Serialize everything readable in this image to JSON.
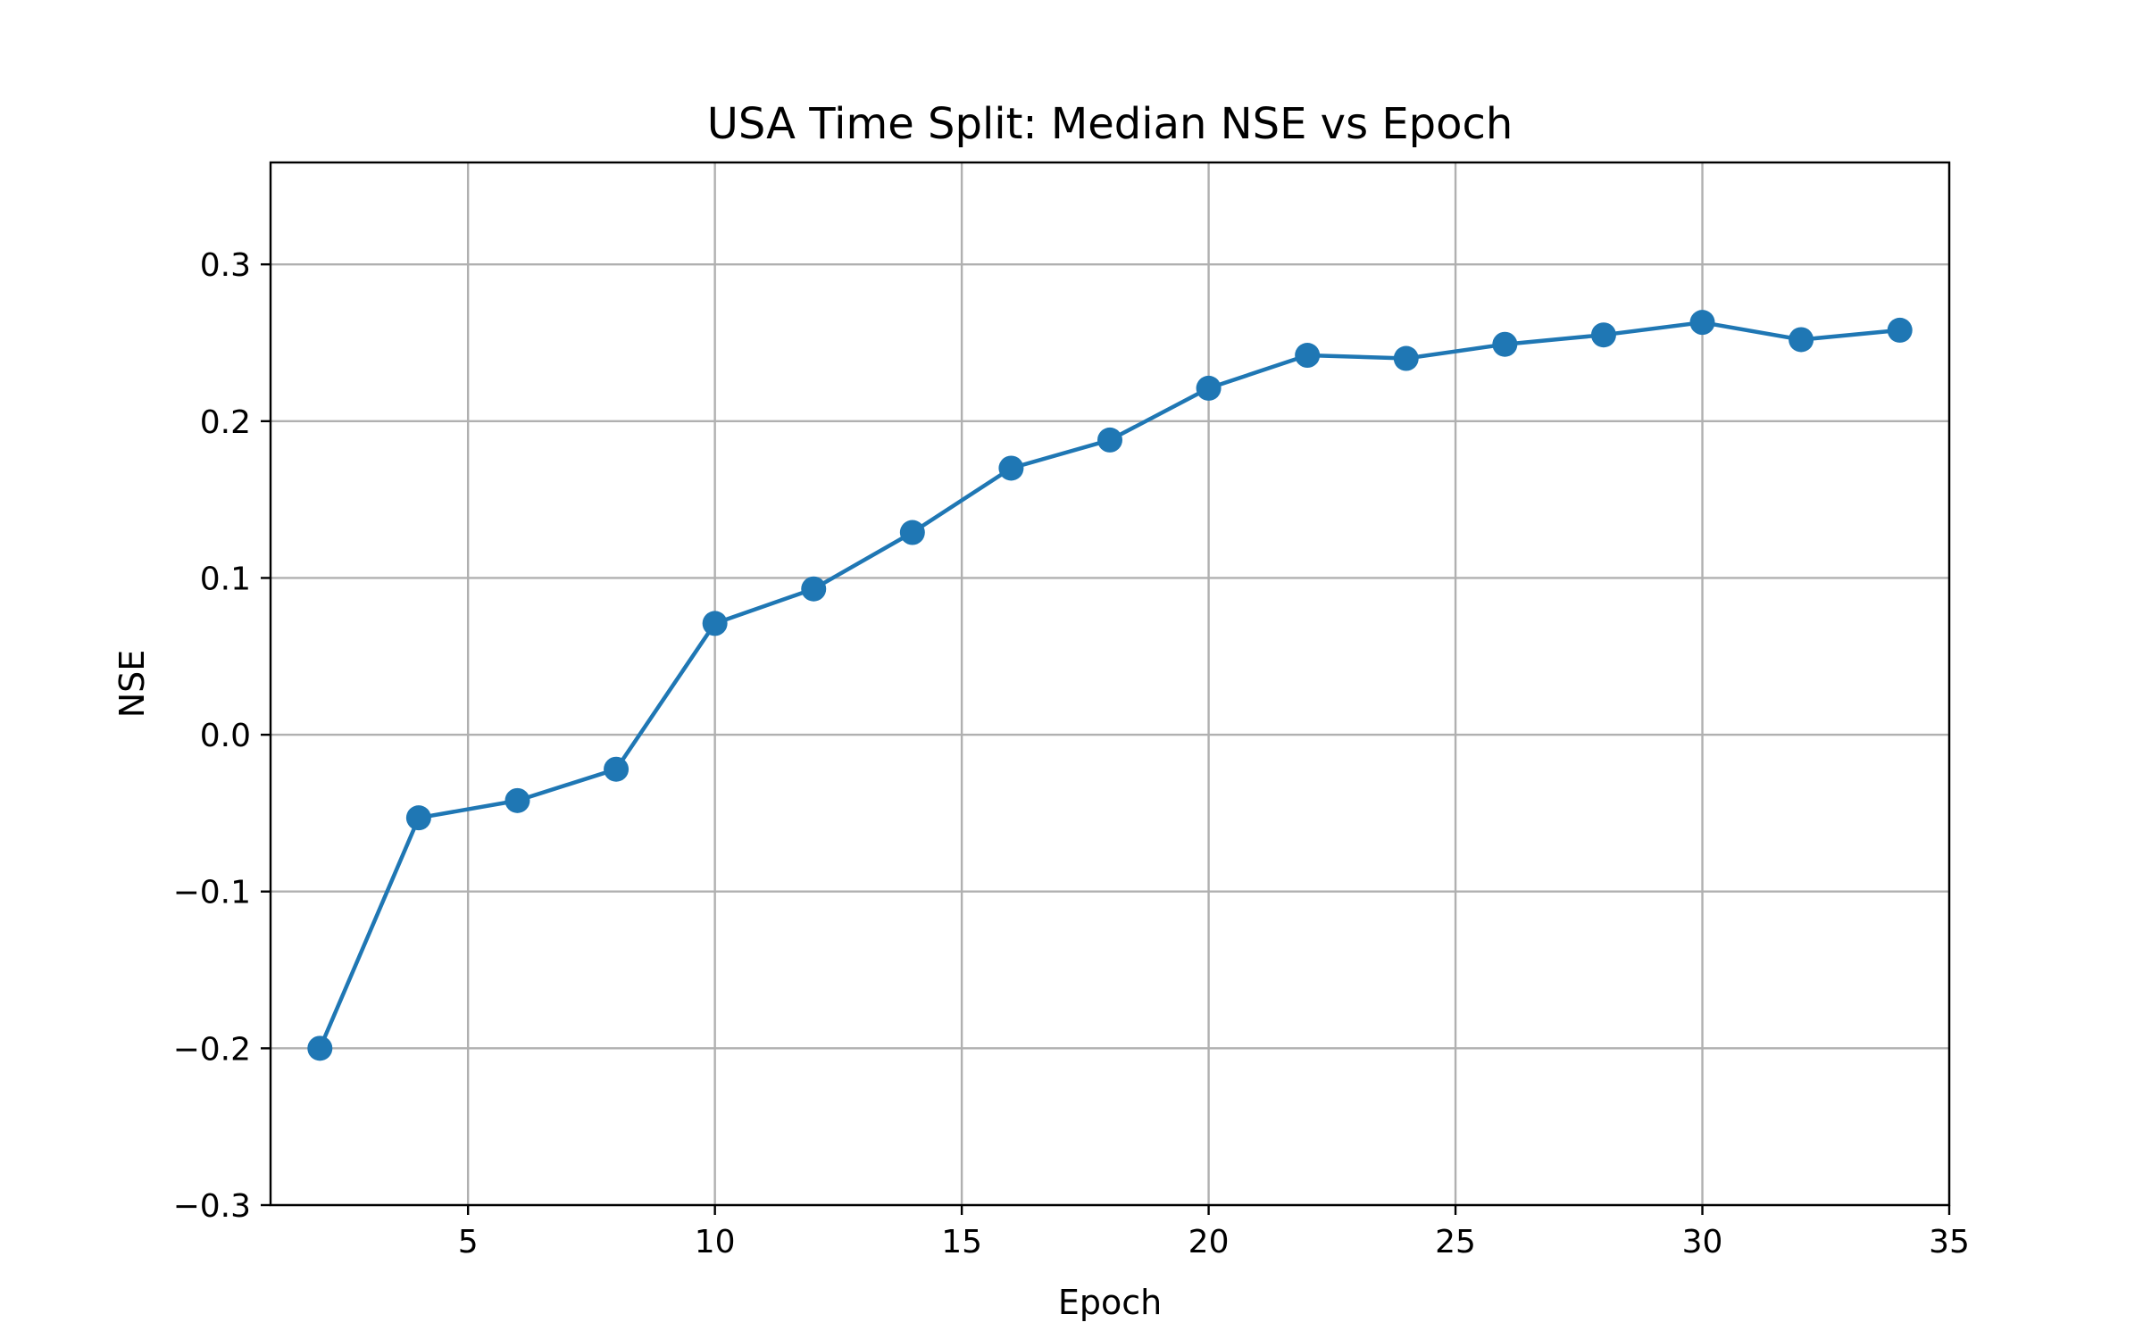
{
  "chart_data": {
    "type": "line",
    "title": "USA Time Split: Median NSE vs Epoch",
    "xlabel": "Epoch",
    "ylabel": "NSE",
    "xlim": [
      1,
      35
    ],
    "ylim": [
      -0.3,
      0.365
    ],
    "xticks": [
      5,
      10,
      15,
      20,
      25,
      30,
      35
    ],
    "yticks": [
      -0.3,
      -0.2,
      -0.1,
      0.0,
      0.1,
      0.2,
      0.3
    ],
    "xtick_labels": [
      "5",
      "10",
      "15",
      "20",
      "25",
      "30",
      "35"
    ],
    "ytick_labels": [
      "−0.3",
      "−0.2",
      "−0.1",
      "0.0",
      "0.1",
      "0.2",
      "0.3"
    ],
    "grid": true,
    "series": [
      {
        "color": "#1f77b4",
        "marker": "circle",
        "x": [
          2,
          4,
          6,
          8,
          10,
          12,
          14,
          16,
          18,
          20,
          22,
          24,
          26,
          28,
          30,
          32,
          34
        ],
        "y": [
          -0.2,
          -0.053,
          -0.042,
          -0.022,
          0.071,
          0.093,
          0.129,
          0.17,
          0.188,
          0.221,
          0.242,
          0.24,
          0.249,
          0.255,
          0.263,
          0.252,
          0.258
        ]
      }
    ]
  }
}
